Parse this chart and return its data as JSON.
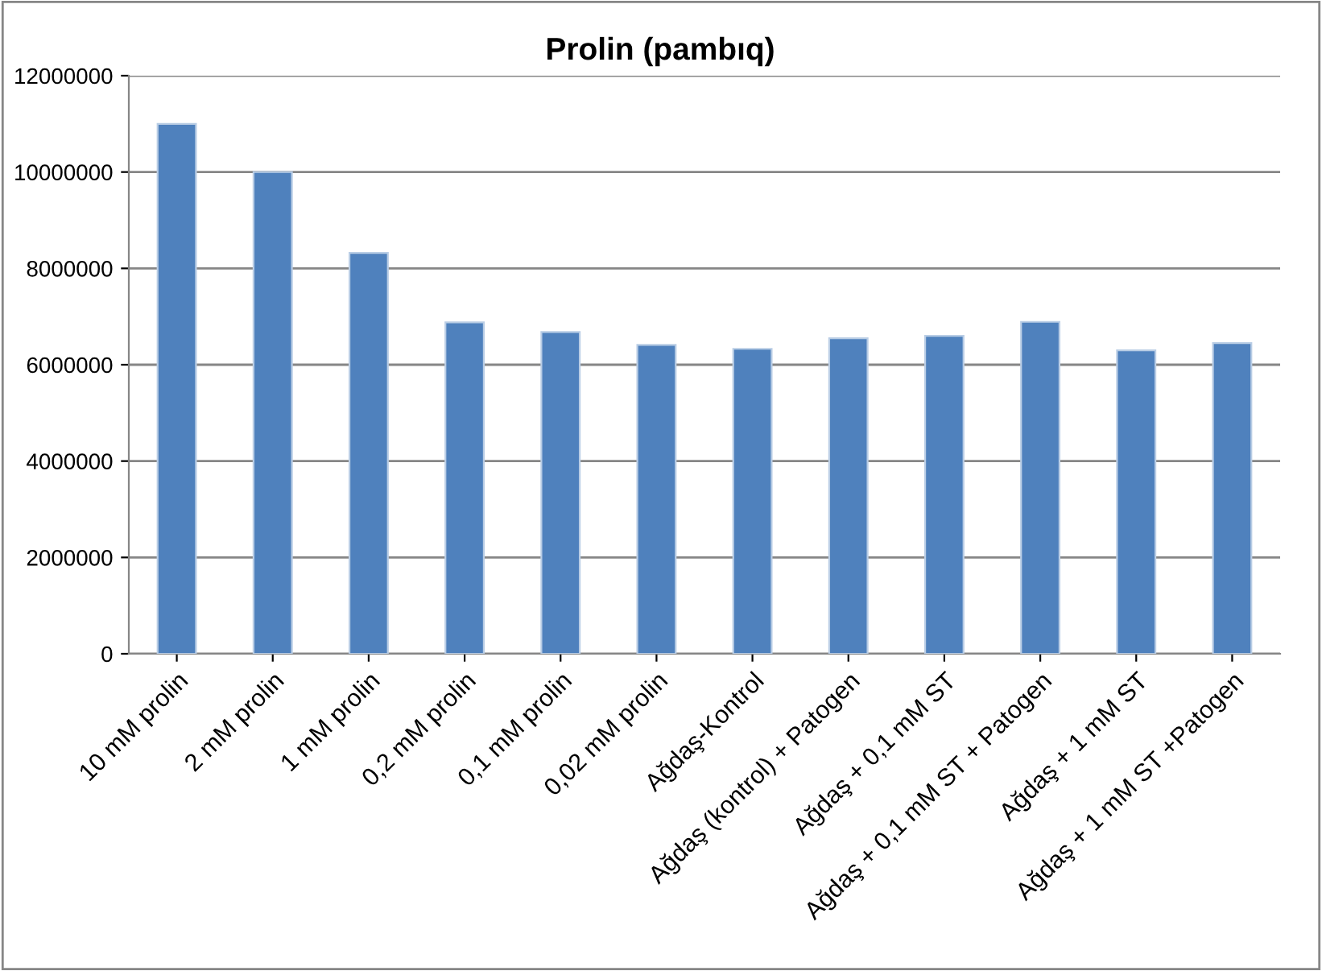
{
  "chart_data": {
    "type": "bar",
    "title": "Prolin (pambıq)",
    "categories": [
      "10 mM prolin",
      "2 mM prolin",
      "1 mM prolin",
      "0,2 mM prolin",
      "0,1 mM prolin",
      "0,02 mM prolin",
      "Ağdaş-Kontrol",
      "Ağdaş (kontrol) + Patogen",
      "Ağdaş + 0,1 mM ST",
      "Ağdaş + 0,1 mM ST + Patogen",
      "Ağdaş + 1 mM ST",
      "Ağdaş + 1 mM ST +Patogen"
    ],
    "values": [
      11000000,
      10000000,
      8320000,
      6880000,
      6680000,
      6410000,
      6330000,
      6550000,
      6600000,
      6890000,
      6300000,
      6450000
    ],
    "color": "#4f81bd",
    "ylim": [
      0,
      12000000
    ],
    "yticks": [
      0,
      2000000,
      4000000,
      6000000,
      8000000,
      10000000,
      12000000
    ],
    "grid": "y"
  }
}
